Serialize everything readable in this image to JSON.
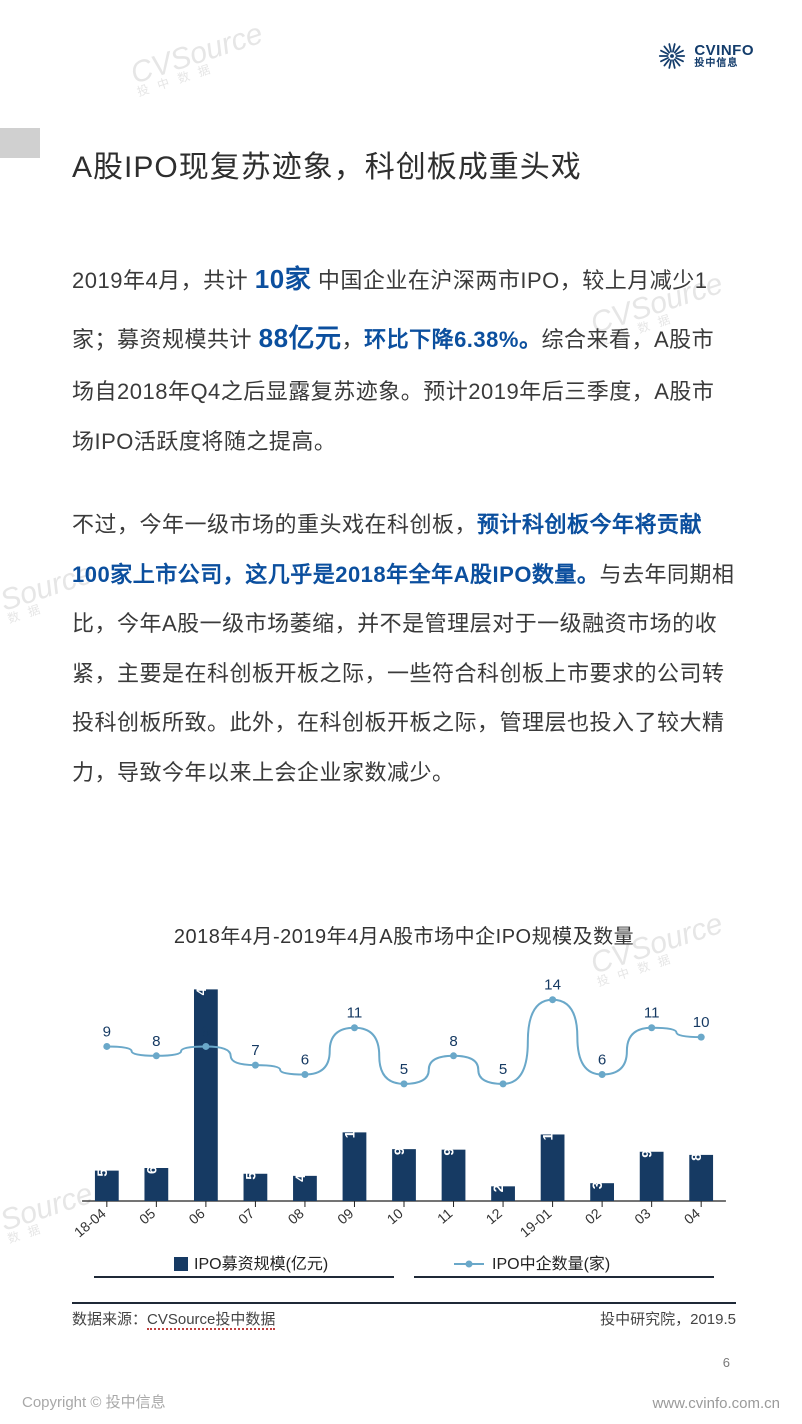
{
  "logo": {
    "en": "CVINFO",
    "cn": "投中信息"
  },
  "title": "A股IPO现复苏迹象，科创板成重头戏",
  "p1_pre": "2019年4月，共计 ",
  "p1_em1": "10家",
  "p1_mid1": " 中国企业在沪深两市IPO，较上月减少1家；募资规模共计 ",
  "p1_em2": "88亿元",
  "p1_sep": "，",
  "p1_em3": "环比下降6.38%。",
  "p1_tail": "综合来看，A股市场自2018年Q4之后显露复苏迹象。预计2019年后三季度，A股市场IPO活跃度将随之提高。",
  "p2_pre": "不过，今年一级市场的重头戏在科创板，",
  "p2_em": "预计科创板今年将贡献100家上市公司，这几乎是2018年全年A股IPO数量。",
  "p2_tail": "与去年同期相比，今年A股一级市场萎缩，并不是管理层对于一级融资市场的收紧，主要是在科创板开板之际，一些符合科创板上市要求的公司转投科创板所致。此外，在科创板开板之际，管理层也投入了较大精力，导致今年以来上会企业家数减少。",
  "chart": {
    "title": "2018年4月-2019年4月A股市场中企IPO规模及数量",
    "x_labels": [
      "18-04",
      "05",
      "06",
      "07",
      "08",
      "09",
      "10",
      "11",
      "12",
      "19-01",
      "02",
      "03",
      "04"
    ],
    "bars": [
      58,
      63,
      404,
      52,
      48,
      131,
      99,
      98,
      28,
      127,
      34,
      94,
      88
    ],
    "line": [
      9,
      8,
      9,
      7,
      6,
      11,
      5,
      8,
      5,
      14,
      6,
      11,
      10
    ],
    "bar_max": 420,
    "line_max": 16,
    "bar_color": "#163a63",
    "line_color": "#6aa8c9",
    "text_color": "#163a63",
    "axis_color": "#222222",
    "bar_label_color": "#ffffff",
    "legend_bar": "IPO募资规模(亿元)",
    "legend_line": "IPO中企数量(家)"
  },
  "source_left_label": "数据来源：",
  "source_left_value": "CVSource投中数据",
  "source_right": "投中研究院，2019.5",
  "page_num": "6",
  "copyright": "Copyright © 投中信息",
  "url": "www.cvinfo.com.cn",
  "watermark_main": "CVSource",
  "watermark_sub": "投 中 数 据"
}
